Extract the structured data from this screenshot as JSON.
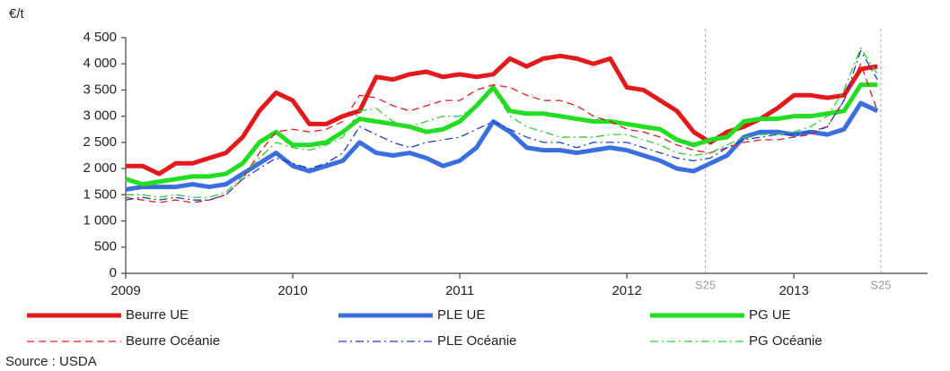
{
  "chart_data": {
    "type": "line",
    "y_axis_label": "€/t",
    "source": "Source : USDA",
    "x": [
      2009.0,
      2009.1,
      2009.2,
      2009.3,
      2009.4,
      2009.5,
      2009.6,
      2009.7,
      2009.8,
      2009.9,
      2010.0,
      2010.1,
      2010.2,
      2010.3,
      2010.4,
      2010.5,
      2010.6,
      2010.7,
      2010.8,
      2010.9,
      2011.0,
      2011.1,
      2011.2,
      2011.3,
      2011.4,
      2011.5,
      2011.6,
      2011.7,
      2011.8,
      2011.9,
      2012.0,
      2012.1,
      2012.2,
      2012.3,
      2012.4,
      2012.5,
      2012.6,
      2012.7,
      2012.8,
      2012.9,
      2013.0,
      2013.1,
      2013.2,
      2013.3,
      2013.4,
      2013.5
    ],
    "series": [
      {
        "name": "Beurre UE",
        "color": "#e31a1c",
        "width": 5,
        "dash": "solid",
        "values": [
          2050,
          2050,
          1900,
          2100,
          2100,
          2200,
          2300,
          2600,
          3100,
          3450,
          3300,
          2850,
          2850,
          3000,
          3100,
          3750,
          3700,
          3800,
          3850,
          3750,
          3800,
          3750,
          3800,
          4100,
          3950,
          4100,
          4150,
          4100,
          4000,
          4100,
          3550,
          3500,
          3300,
          3100,
          2700,
          2500,
          2700,
          2800,
          2950,
          3150,
          3400,
          3400,
          3350,
          3400,
          3900,
          3950
        ]
      },
      {
        "name": "PLE UE",
        "color": "#3b6fe0",
        "width": 5,
        "dash": "solid",
        "values": [
          1600,
          1650,
          1650,
          1650,
          1700,
          1650,
          1700,
          1900,
          2100,
          2300,
          2050,
          1950,
          2050,
          2150,
          2500,
          2300,
          2250,
          2300,
          2200,
          2050,
          2150,
          2400,
          2900,
          2700,
          2400,
          2350,
          2350,
          2300,
          2350,
          2400,
          2350,
          2250,
          2150,
          2000,
          1950,
          2100,
          2250,
          2600,
          2700,
          2700,
          2650,
          2700,
          2650,
          2750,
          3250,
          3100
        ]
      },
      {
        "name": "PG UE",
        "color": "#22dd22",
        "width": 5,
        "dash": "solid",
        "values": [
          1800,
          1700,
          1750,
          1800,
          1850,
          1850,
          1900,
          2100,
          2500,
          2700,
          2450,
          2450,
          2500,
          2700,
          2950,
          2900,
          2850,
          2800,
          2700,
          2750,
          2900,
          3200,
          3550,
          3100,
          3050,
          3050,
          3000,
          2950,
          2900,
          2900,
          2850,
          2800,
          2750,
          2550,
          2450,
          2550,
          2600,
          2900,
          2950,
          2950,
          3000,
          3000,
          3050,
          3100,
          3600,
          3600
        ]
      },
      {
        "name": "Beurre Océanie",
        "color": "#e31a1c",
        "width": 1.3,
        "dash": "dash",
        "values": [
          1450,
          1400,
          1350,
          1400,
          1350,
          1400,
          1500,
          1800,
          2300,
          2700,
          2750,
          2700,
          2750,
          2900,
          3400,
          3350,
          3200,
          3100,
          3200,
          3300,
          3300,
          3500,
          3600,
          3550,
          3400,
          3300,
          3300,
          3200,
          3000,
          2900,
          2750,
          2700,
          2600,
          2450,
          2350,
          2300,
          2400,
          2500,
          2550,
          2550,
          2600,
          2650,
          2800,
          3300,
          4000,
          3100
        ]
      },
      {
        "name": "PLE Océanie",
        "color": "#1f3fbf",
        "width": 1.3,
        "dash": "dashdot",
        "values": [
          1400,
          1450,
          1400,
          1450,
          1400,
          1400,
          1500,
          1800,
          2000,
          2200,
          2100,
          2000,
          2100,
          2300,
          2800,
          2650,
          2500,
          2400,
          2500,
          2550,
          2600,
          2750,
          2900,
          2750,
          2600,
          2500,
          2500,
          2400,
          2500,
          2500,
          2500,
          2400,
          2300,
          2200,
          2150,
          2200,
          2400,
          2550,
          2600,
          2650,
          2650,
          2700,
          2800,
          3300,
          4250,
          3700
        ]
      },
      {
        "name": "PG Océanie",
        "color": "#33cc33",
        "width": 1.3,
        "dash": "dashdot",
        "values": [
          1500,
          1500,
          1450,
          1500,
          1450,
          1450,
          1550,
          1850,
          2200,
          2500,
          2400,
          2350,
          2450,
          2600,
          3100,
          3150,
          2900,
          2800,
          2900,
          3000,
          3000,
          3200,
          3500,
          3000,
          2800,
          2700,
          2600,
          2600,
          2600,
          2650,
          2650,
          2550,
          2450,
          2300,
          2250,
          2300,
          2450,
          2600,
          2650,
          2650,
          2700,
          2800,
          3000,
          3500,
          4300,
          3800
        ]
      }
    ],
    "xlim": [
      2009,
      2013.8
    ],
    "xticks": [
      2009,
      2010,
      2011,
      2012,
      2013
    ],
    "ylim": [
      0,
      4500
    ],
    "yticks": [
      0,
      500,
      {
        "value": 1000,
        "label": "1 000"
      },
      {
        "value": 1500,
        "label": "1 500"
      },
      {
        "value": 2000,
        "label": "2 000"
      },
      {
        "value": 2500,
        "label": "2 500"
      },
      {
        "value": 3000,
        "label": "3 000"
      },
      {
        "value": 3500,
        "label": "3 500"
      },
      {
        "value": 4000,
        "label": "4 000"
      },
      {
        "value": 4500,
        "label": "4 500"
      }
    ],
    "grid": false,
    "annotations": [
      {
        "text": "S25",
        "x": 2012.47
      },
      {
        "text": "S25",
        "x": 2013.52
      }
    ]
  }
}
